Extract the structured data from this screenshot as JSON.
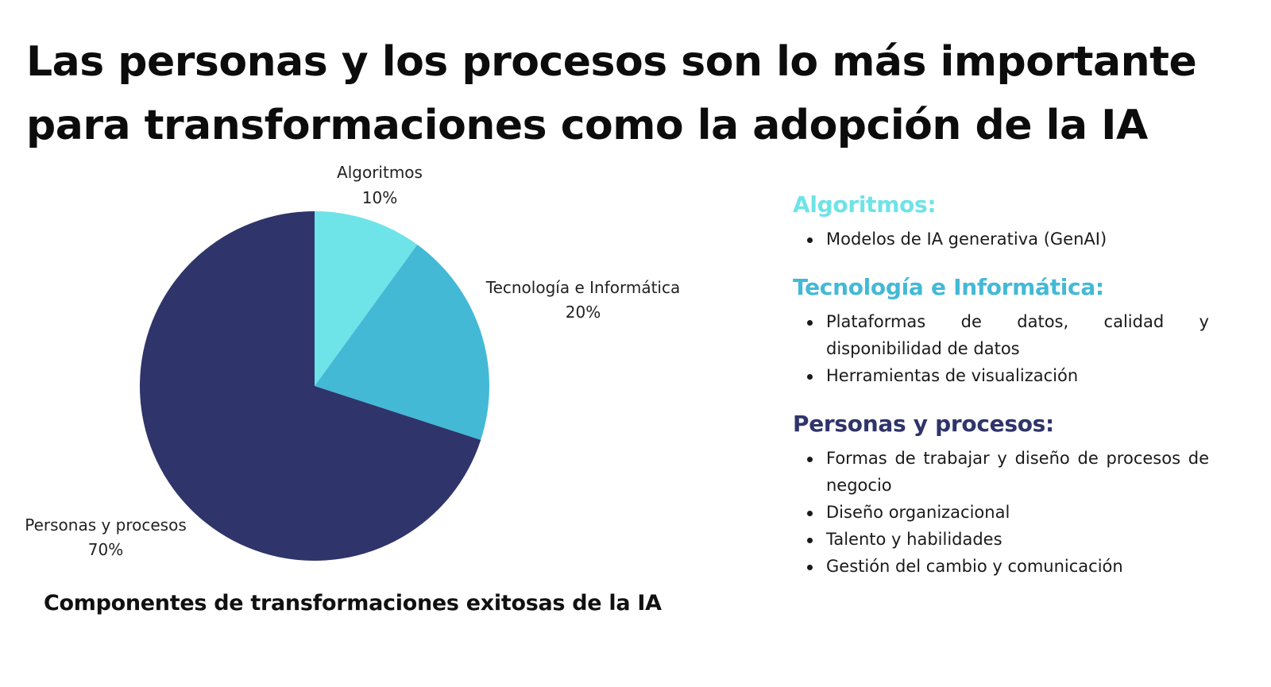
{
  "title_lines": [
    "Las personas y los procesos son lo más importante",
    "para transformaciones como la adopción de la IA"
  ],
  "chart_data": {
    "type": "pie",
    "title": "Componentes de transformaciones exitosas de la IA",
    "slices": [
      {
        "label": "Algoritmos",
        "value": 10,
        "display": "10%",
        "color": "#6ee3e8"
      },
      {
        "label": "Tecnología e Informática",
        "value": 20,
        "display": "20%",
        "color": "#43b9d6"
      },
      {
        "label": "Personas y procesos",
        "value": 70,
        "display": "70%",
        "color": "#2f346a"
      }
    ]
  },
  "legend": {
    "sections": [
      {
        "heading": "Algoritmos:",
        "color": "#6ee3e8",
        "items": [
          "Modelos de IA generativa (GenAI)"
        ]
      },
      {
        "heading": "Tecnología e Informática:",
        "color": "#43b9d6",
        "items": [
          "Plataformas de datos, calidad y disponibilidad de datos",
          "Herramientas de visualización"
        ]
      },
      {
        "heading": "Personas y procesos:",
        "color": "#2f346a",
        "items": [
          "Formas de trabajar y diseño de procesos de negocio",
          "Diseño organizacional",
          "Talento y habilidades",
          "Gestión del cambio y comunicación"
        ]
      }
    ]
  }
}
